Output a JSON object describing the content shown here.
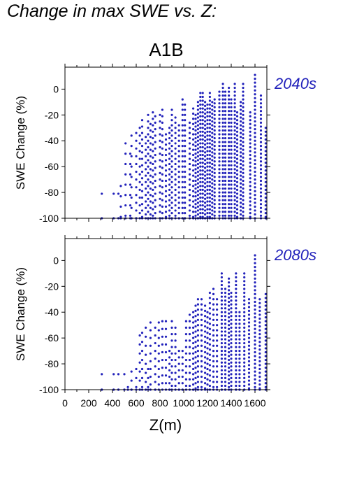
{
  "figure": {
    "title": "Change in max SWE vs. Z:",
    "scenario": "A1B",
    "point_color": "#2222BB",
    "label_color": "#2222BB"
  },
  "chart_data": [
    {
      "type": "scatter",
      "period_label": "2040s",
      "ylabel": "SWE Change (%)",
      "xlabel": "",
      "xlim": [
        0,
        1700
      ],
      "ylim": [
        -100,
        17
      ],
      "yticks": [
        0,
        -20,
        -40,
        -60,
        -80,
        -100
      ],
      "xticks": [],
      "columns": [
        {
          "x": 310,
          "top": -81,
          "step": 25
        },
        {
          "x": 410,
          "top": -81,
          "step": 20
        },
        {
          "x": 450,
          "top": -81,
          "step": 20
        },
        {
          "x": 470,
          "top": -75,
          "step": 8
        },
        {
          "x": 510,
          "top": -42,
          "step": 8
        },
        {
          "x": 550,
          "top": -50,
          "step": 8
        },
        {
          "x": 560,
          "top": -36,
          "step": 8
        },
        {
          "x": 600,
          "top": -34,
          "step": 6
        },
        {
          "x": 630,
          "top": -30,
          "step": 6
        },
        {
          "x": 650,
          "top": -24,
          "step": 5
        },
        {
          "x": 680,
          "top": -37,
          "step": 5
        },
        {
          "x": 700,
          "top": -20,
          "step": 5
        },
        {
          "x": 720,
          "top": -27,
          "step": 5
        },
        {
          "x": 740,
          "top": -18,
          "step": 5
        },
        {
          "x": 760,
          "top": -21,
          "step": 5
        },
        {
          "x": 800,
          "top": -20,
          "step": 5
        },
        {
          "x": 820,
          "top": -16,
          "step": 5
        },
        {
          "x": 850,
          "top": -35,
          "step": 4
        },
        {
          "x": 880,
          "top": -30,
          "step": 4
        },
        {
          "x": 900,
          "top": -16,
          "step": 4
        },
        {
          "x": 930,
          "top": -22,
          "step": 4
        },
        {
          "x": 960,
          "top": -28,
          "step": 4
        },
        {
          "x": 990,
          "top": -8,
          "step": 4
        },
        {
          "x": 1010,
          "top": -12,
          "step": 4
        },
        {
          "x": 1050,
          "top": -26,
          "step": 4
        },
        {
          "x": 1080,
          "top": -15,
          "step": 4
        },
        {
          "x": 1100,
          "top": -20,
          "step": 3
        },
        {
          "x": 1120,
          "top": -10,
          "step": 3
        },
        {
          "x": 1140,
          "top": -3,
          "step": 3
        },
        {
          "x": 1160,
          "top": -3,
          "step": 3
        },
        {
          "x": 1180,
          "top": -10,
          "step": 3
        },
        {
          "x": 1200,
          "top": -12,
          "step": 3
        },
        {
          "x": 1220,
          "top": -3,
          "step": 3
        },
        {
          "x": 1240,
          "top": -10,
          "step": 3
        },
        {
          "x": 1260,
          "top": -8,
          "step": 3
        },
        {
          "x": 1300,
          "top": -2,
          "step": 3
        },
        {
          "x": 1330,
          "top": 4,
          "step": 3
        },
        {
          "x": 1350,
          "top": -2,
          "step": 3
        },
        {
          "x": 1380,
          "top": 1,
          "step": 3
        },
        {
          "x": 1400,
          "top": -8,
          "step": 3
        },
        {
          "x": 1430,
          "top": 4,
          "step": 3
        },
        {
          "x": 1450,
          "top": -18,
          "step": 3
        },
        {
          "x": 1480,
          "top": -10,
          "step": 3
        },
        {
          "x": 1500,
          "top": 4,
          "step": 3
        },
        {
          "x": 1560,
          "top": -18,
          "step": 3
        },
        {
          "x": 1600,
          "top": 11,
          "step": 3
        },
        {
          "x": 1650,
          "top": -5,
          "step": 3
        },
        {
          "x": 1690,
          "top": -30,
          "step": 3
        }
      ],
      "point_color": "#2222BB"
    },
    {
      "type": "scatter",
      "period_label": "2080s",
      "ylabel": "SWE Change (%)",
      "xlabel": "Z(m)",
      "xlim": [
        0,
        1700
      ],
      "ylim": [
        -100,
        17
      ],
      "yticks": [
        0,
        -20,
        -40,
        -60,
        -80,
        -100
      ],
      "xticks": [
        0,
        200,
        400,
        600,
        800,
        1000,
        1200,
        1400,
        1600
      ],
      "columns": [
        {
          "x": 310,
          "top": -88,
          "step": 12
        },
        {
          "x": 410,
          "top": -88,
          "step": 12
        },
        {
          "x": 450,
          "top": -88,
          "step": 12
        },
        {
          "x": 500,
          "top": -88,
          "step": 12
        },
        {
          "x": 530,
          "top": -98,
          "step": 2
        },
        {
          "x": 560,
          "top": -86,
          "step": 7
        },
        {
          "x": 600,
          "top": -84,
          "step": 7
        },
        {
          "x": 630,
          "top": -58,
          "step": 7
        },
        {
          "x": 650,
          "top": -56,
          "step": 7
        },
        {
          "x": 680,
          "top": -52,
          "step": 7
        },
        {
          "x": 700,
          "top": -84,
          "step": 7
        },
        {
          "x": 720,
          "top": -48,
          "step": 6
        },
        {
          "x": 760,
          "top": -52,
          "step": 6
        },
        {
          "x": 790,
          "top": -48,
          "step": 6
        },
        {
          "x": 820,
          "top": -47,
          "step": 6
        },
        {
          "x": 850,
          "top": -47,
          "step": 6
        },
        {
          "x": 880,
          "top": -70,
          "step": 5
        },
        {
          "x": 900,
          "top": -47,
          "step": 5
        },
        {
          "x": 930,
          "top": -52,
          "step": 5
        },
        {
          "x": 960,
          "top": -70,
          "step": 5
        },
        {
          "x": 990,
          "top": -70,
          "step": 5
        },
        {
          "x": 1020,
          "top": -47,
          "step": 5
        },
        {
          "x": 1050,
          "top": -42,
          "step": 5
        },
        {
          "x": 1080,
          "top": -40,
          "step": 4
        },
        {
          "x": 1100,
          "top": -35,
          "step": 4
        },
        {
          "x": 1120,
          "top": -30,
          "step": 4
        },
        {
          "x": 1150,
          "top": -30,
          "step": 4
        },
        {
          "x": 1180,
          "top": -35,
          "step": 4
        },
        {
          "x": 1200,
          "top": -40,
          "step": 4
        },
        {
          "x": 1220,
          "top": -25,
          "step": 4
        },
        {
          "x": 1250,
          "top": -22,
          "step": 4
        },
        {
          "x": 1280,
          "top": -30,
          "step": 4
        },
        {
          "x": 1320,
          "top": -10,
          "step": 3
        },
        {
          "x": 1350,
          "top": -22,
          "step": 3
        },
        {
          "x": 1380,
          "top": -14,
          "step": 3
        },
        {
          "x": 1400,
          "top": -25,
          "step": 3
        },
        {
          "x": 1440,
          "top": -10,
          "step": 3
        },
        {
          "x": 1470,
          "top": -40,
          "step": 3
        },
        {
          "x": 1510,
          "top": -10,
          "step": 3
        },
        {
          "x": 1550,
          "top": -30,
          "step": 3
        },
        {
          "x": 1600,
          "top": 4,
          "step": 3
        },
        {
          "x": 1640,
          "top": -30,
          "step": 3
        },
        {
          "x": 1690,
          "top": -26,
          "step": 3
        }
      ],
      "point_color": "#2222BB"
    }
  ]
}
